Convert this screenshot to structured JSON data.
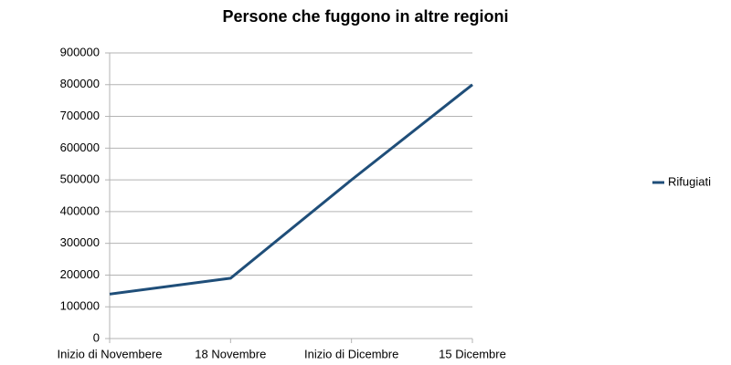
{
  "chart_data": {
    "type": "line",
    "title": "Persone che fuggono in altre regioni",
    "categories": [
      "Inizio di Novembere",
      "18 Novembre",
      "Inizio di Dicembre",
      "15 Dicembre"
    ],
    "series": [
      {
        "name": "Rifugiati",
        "color": "#1f4e79",
        "values": [
          140000,
          190000,
          500000,
          800000
        ]
      }
    ],
    "ylim": [
      0,
      900000
    ],
    "yticks": [
      0,
      100000,
      200000,
      300000,
      400000,
      500000,
      600000,
      700000,
      800000,
      900000
    ],
    "grid": true,
    "legend": "right"
  }
}
